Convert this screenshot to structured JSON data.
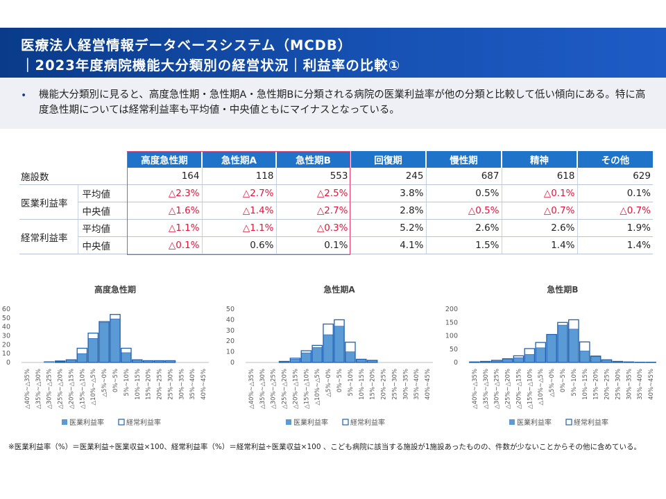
{
  "header": {
    "line1": "医療法人経営情報データベースシステム（MCDB）",
    "line2": "｜2023年度病院機能大分類別の経営状況｜利益率の比較①"
  },
  "summary": {
    "bullet": "•",
    "text": "機能大分類別に見ると、高度急性期・急性期A・急性期Bに分類される病院の医業利益率が他の分類と比較して低い傾向にある。特に高度急性期については経常利益率も平均値・中央値ともにマイナスとなっている。"
  },
  "table": {
    "columns": [
      "高度急性期",
      "急性期A",
      "急性期B",
      "回復期",
      "慢性期",
      "精神",
      "その他"
    ],
    "facility_label": "施設数",
    "facility_counts": [
      "164",
      "118",
      "553",
      "245",
      "687",
      "618",
      "629"
    ],
    "groups": [
      {
        "label": "医業利益率",
        "rows": [
          {
            "sub": "平均値",
            "values": [
              "△2.3%",
              "△2.7%",
              "△2.5%",
              "3.8%",
              "0.5%",
              "△0.1%",
              "0.1%"
            ]
          },
          {
            "sub": "中央値",
            "values": [
              "△1.6%",
              "△1.4%",
              "△2.7%",
              "2.8%",
              "△0.5%",
              "△0.7%",
              "△0.7%"
            ]
          }
        ]
      },
      {
        "label": "経常利益率",
        "rows": [
          {
            "sub": "平均値",
            "values": [
              "△1.1%",
              "△1.1%",
              "△0.3%",
              "5.2%",
              "2.6%",
              "2.6%",
              "1.9%"
            ]
          },
          {
            "sub": "中央値",
            "values": [
              "△0.1%",
              "0.6%",
              "0.1%",
              "4.1%",
              "1.5%",
              "1.4%",
              "1.4%"
            ]
          }
        ]
      }
    ],
    "negative_color": "#e0143c",
    "highlight_color": "#e0487a"
  },
  "chart_data": [
    {
      "type": "bar",
      "title": "高度急性期",
      "categories": [
        "△40%~△35%",
        "△35%~△30%",
        "△30%~△25%",
        "△25%~△20%",
        "△20%~△15%",
        "△15%~△10%",
        "△10%~△5%",
        "△5%~0%",
        "0%~5%",
        "5%~10%",
        "10%~15%",
        "15%~20%",
        "20%~25%",
        "25%~30%",
        "30%~35%",
        "35%~40%",
        "40%~45%"
      ],
      "series": [
        {
          "name": "医業利益率",
          "values": [
            0,
            0,
            1,
            2,
            3,
            10,
            27,
            45,
            49,
            11,
            3,
            2,
            2,
            1,
            0,
            0,
            0
          ]
        },
        {
          "name": "経常利益率",
          "values": [
            0,
            0,
            0,
            1,
            3,
            16,
            33,
            46,
            54,
            16,
            3,
            2,
            2,
            2,
            0,
            0,
            0
          ]
        }
      ],
      "yticks": [
        0,
        10,
        20,
        30,
        40,
        50,
        60
      ],
      "ylim": [
        0,
        60
      ],
      "legend": "bottom"
    },
    {
      "type": "bar",
      "title": "急性期A",
      "categories": [
        "△40%~△35%",
        "△35%~△30%",
        "△30%~△25%",
        "△25%~△20%",
        "△20%~△15%",
        "△15%~△10%",
        "△10%~△5%",
        "△5%~0%",
        "0%~5%",
        "5%~10%",
        "10%~15%",
        "15%~20%",
        "20%~25%",
        "25%~30%",
        "30%~35%",
        "35%~40%",
        "40%~45%"
      ],
      "series": [
        {
          "name": "医業利益率",
          "values": [
            0,
            0,
            0,
            1,
            3,
            9,
            14,
            26,
            34,
            10,
            3,
            2,
            0,
            0,
            0,
            0,
            0
          ]
        },
        {
          "name": "経常利益率",
          "values": [
            0,
            0,
            0,
            1,
            4,
            11,
            16,
            36,
            40,
            19,
            3,
            2,
            0,
            0,
            0,
            0,
            0
          ]
        }
      ],
      "yticks": [
        0,
        10,
        20,
        30,
        40,
        50
      ],
      "ylim": [
        0,
        50
      ],
      "legend": "bottom"
    },
    {
      "type": "bar",
      "title": "急性期B",
      "categories": [
        "△40%~△35%",
        "△35%~△30%",
        "△30%~△25%",
        "△25%~△20%",
        "△20%~△15%",
        "△15%~△10%",
        "△10%~△5%",
        "△5%~0%",
        "0%~5%",
        "5%~10%",
        "10%~15%",
        "15%~20%",
        "20%~25%",
        "25%~30%",
        "30%~35%",
        "35%~40%",
        "40%~45%"
      ],
      "series": [
        {
          "name": "医業利益率",
          "values": [
            2,
            3,
            5,
            13,
            18,
            30,
            55,
            105,
            140,
            125,
            43,
            22,
            10,
            3,
            2,
            1,
            1
          ]
        },
        {
          "name": "経常利益率",
          "values": [
            2,
            4,
            8,
            14,
            25,
            52,
            75,
            105,
            150,
            160,
            77,
            24,
            10,
            4,
            2,
            1,
            1
          ]
        }
      ],
      "yticks": [
        0,
        50,
        100,
        150,
        200
      ],
      "ylim": [
        0,
        200
      ],
      "legend": "bottom"
    }
  ],
  "chart_colors": {
    "fill": "#5b9bd5",
    "outline": "#1f5fb0",
    "axis": "#bfbfbf"
  },
  "note": "※医業利益率（%）＝医業利益÷医業収益×100、経常利益率（%）＝経常利益÷医業収益×100 、こども病院に該当する施設が1施設あったものの、件数が少ないことからその他に含めている。"
}
